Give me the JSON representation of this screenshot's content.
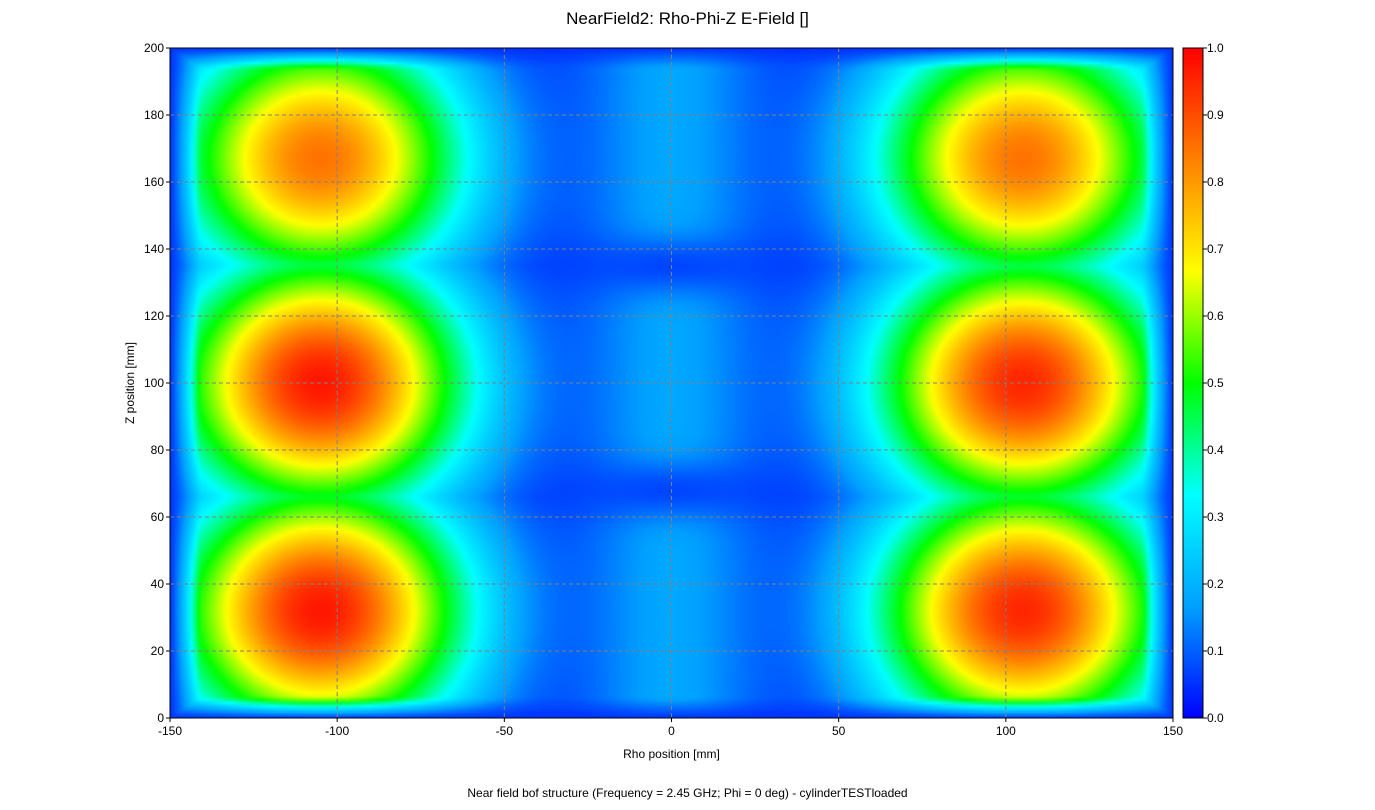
{
  "page": {
    "title": "NearField2: Rho-Phi-Z E-Field []",
    "footer": "Near field bof structure (Frequency = 2.45 GHz; Phi = 0 deg) - cylinderTESTloaded"
  },
  "chart_data": {
    "type": "heatmap",
    "title": "NearField2: Rho-Phi-Z E-Field []",
    "xlabel": "Rho position [mm]",
    "ylabel": "Z position [mm]",
    "xlim": [
      -150,
      150
    ],
    "ylim": [
      0,
      200
    ],
    "x_ticks": [
      -150,
      -100,
      -50,
      0,
      50,
      100,
      150
    ],
    "y_ticks": [
      0,
      20,
      40,
      60,
      80,
      100,
      120,
      140,
      160,
      180,
      200
    ],
    "grid": true,
    "colorbar": {
      "range": [
        0.0,
        1.0
      ],
      "ticks": [
        "0.0",
        "0.1",
        "0.2",
        "0.3",
        "0.4",
        "0.5",
        "0.6",
        "0.7",
        "0.8",
        "0.9",
        "1.0"
      ],
      "colormap": [
        "#0000ff",
        "#00a0ff",
        "#00ffff",
        "#00ff00",
        "#ffff00",
        "#ff8000",
        "#ff0000"
      ]
    },
    "hotspots": [
      {
        "rho": -105,
        "z": 167,
        "value": 0.85
      },
      {
        "rho": 105,
        "z": 167,
        "value": 0.85
      },
      {
        "rho": -105,
        "z": 100,
        "value": 0.97
      },
      {
        "rho": 105,
        "z": 100,
        "value": 0.95
      },
      {
        "rho": -105,
        "z": 32,
        "value": 0.97
      },
      {
        "rho": 105,
        "z": 32,
        "value": 0.95
      }
    ],
    "minima_z": [
      135,
      68
    ],
    "center_value": 0.18,
    "edge_value": 0.05
  }
}
